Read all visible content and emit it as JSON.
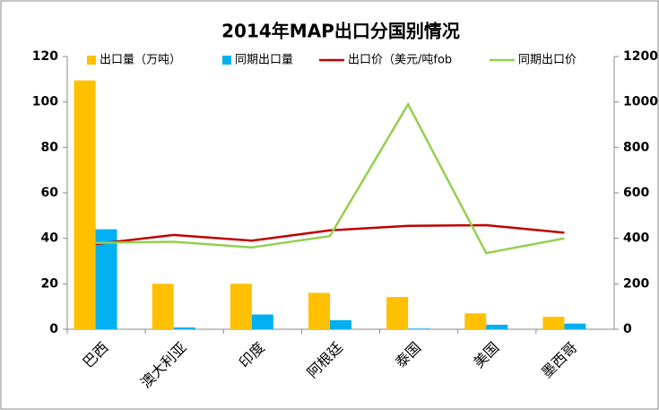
{
  "chart_data": {
    "type": "bar_line",
    "title": "2014年MAP出口分国别情况",
    "categories": [
      "巴西",
      "澳大利亚",
      "印度",
      "阿根廷",
      "泰国",
      "美国",
      "墨西哥"
    ],
    "series": [
      {
        "name": "出口量（万吨）",
        "color": "#FFC000",
        "kind": "bar",
        "values": [
          109.5,
          20,
          20,
          16,
          14.2,
          7,
          5.5
        ]
      },
      {
        "name": "同期出口量",
        "color": "#00B0F0",
        "kind": "bar",
        "values": [
          44,
          0.8,
          6.5,
          4,
          0.3,
          2,
          2.5
        ]
      },
      {
        "name": "出口价（美元/吨fob",
        "color": "#C00000",
        "kind": "line",
        "axis": "y2",
        "values": [
          375,
          415,
          390,
          435,
          455,
          458,
          425
        ]
      },
      {
        "name": "同期出口价",
        "color": "#92D050",
        "kind": "line",
        "axis": "y2",
        "values": [
          380,
          385,
          360,
          410,
          990,
          335,
          400
        ]
      }
    ],
    "ylim": [
      0,
      120
    ],
    "yticks": [
      0,
      20,
      40,
      60,
      80,
      100,
      120
    ],
    "y2lim": [
      0,
      1200
    ],
    "y2ticks": [
      0,
      200,
      400,
      600,
      800,
      1000,
      1200
    ],
    "legend": "top"
  }
}
